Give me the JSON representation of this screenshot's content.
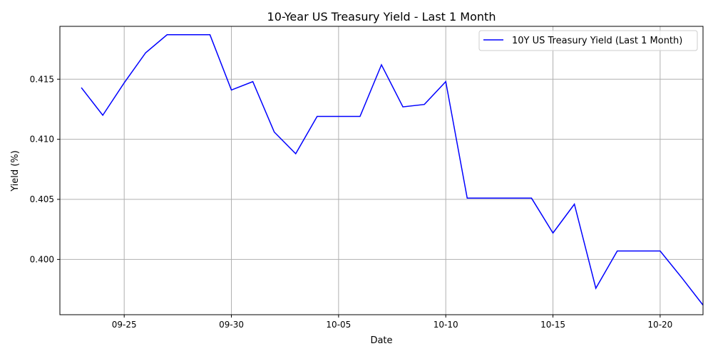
{
  "chart_data": {
    "type": "line",
    "title": "10-Year US Treasury Yield - Last 1 Month",
    "xlabel": "Date",
    "ylabel": "Yield (%)",
    "x_tick_labels": [
      "09-25",
      "09-30",
      "10-05",
      "10-10",
      "10-15",
      "10-20"
    ],
    "y_tick_labels": [
      "0.400",
      "0.405",
      "0.410",
      "0.415"
    ],
    "xlim": [
      "2024-09-22",
      "2024-10-22"
    ],
    "ylim": [
      0.3954,
      0.4194
    ],
    "grid": true,
    "legend_position": "top-right",
    "series": [
      {
        "name": "10Y US Treasury Yield (Last 1 Month)",
        "color": "#0000ff",
        "x": [
          "2024-09-23",
          "2024-09-24",
          "2024-09-25",
          "2024-09-26",
          "2024-09-27",
          "2024-09-28",
          "2024-09-29",
          "2024-09-30",
          "2024-10-01",
          "2024-10-02",
          "2024-10-03",
          "2024-10-04",
          "2024-10-05",
          "2024-10-06",
          "2024-10-07",
          "2024-10-08",
          "2024-10-09",
          "2024-10-10",
          "2024-10-11",
          "2024-10-12",
          "2024-10-13",
          "2024-10-14",
          "2024-10-15",
          "2024-10-16",
          "2024-10-17",
          "2024-10-18",
          "2024-10-19",
          "2024-10-20",
          "2024-10-21",
          "2024-10-22"
        ],
        "values": [
          0.4143,
          0.412,
          0.4147,
          0.4172,
          0.4187,
          0.4187,
          0.4187,
          0.4141,
          0.4148,
          0.4106,
          0.4088,
          0.4119,
          0.4119,
          0.4119,
          0.4162,
          0.4127,
          0.4129,
          0.4148,
          0.4051,
          0.4051,
          0.4051,
          0.4051,
          0.4022,
          0.4046,
          0.3976,
          0.4007,
          0.4007,
          0.4007,
          0.3985,
          0.3962
        ]
      }
    ]
  }
}
